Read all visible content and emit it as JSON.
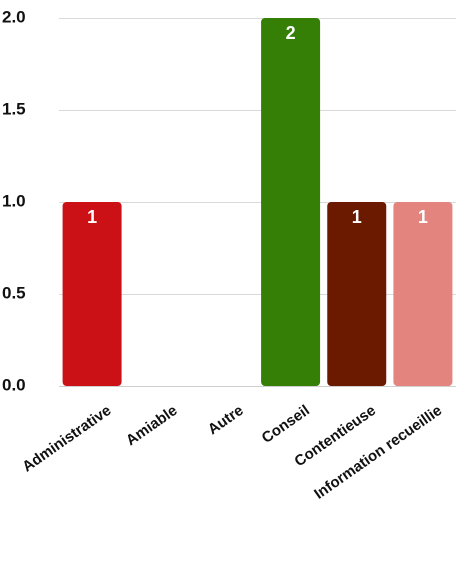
{
  "chart_data": {
    "type": "bar",
    "title": "",
    "xlabel": "",
    "ylabel": "",
    "categories": [
      "Administrative",
      "Amiable",
      "Autre",
      "Conseil",
      "Contentieuse",
      "Information recueillie"
    ],
    "values": [
      1,
      0,
      0,
      2,
      1,
      1
    ],
    "data_labels": [
      "1",
      "",
      "",
      "2",
      "1",
      "1"
    ],
    "colors": [
      "#cc1116",
      "#cc1116",
      "#cc1116",
      "#357f07",
      "#6b1a00",
      "#e3847f"
    ],
    "ylim": [
      0,
      2
    ],
    "y_ticks": [
      0,
      0.5,
      1,
      1.5,
      2
    ],
    "y_tick_labels": [
      "0.0",
      "0.5",
      "1.0",
      "1.5",
      "2.0"
    ],
    "grid": true,
    "legend": "none"
  }
}
